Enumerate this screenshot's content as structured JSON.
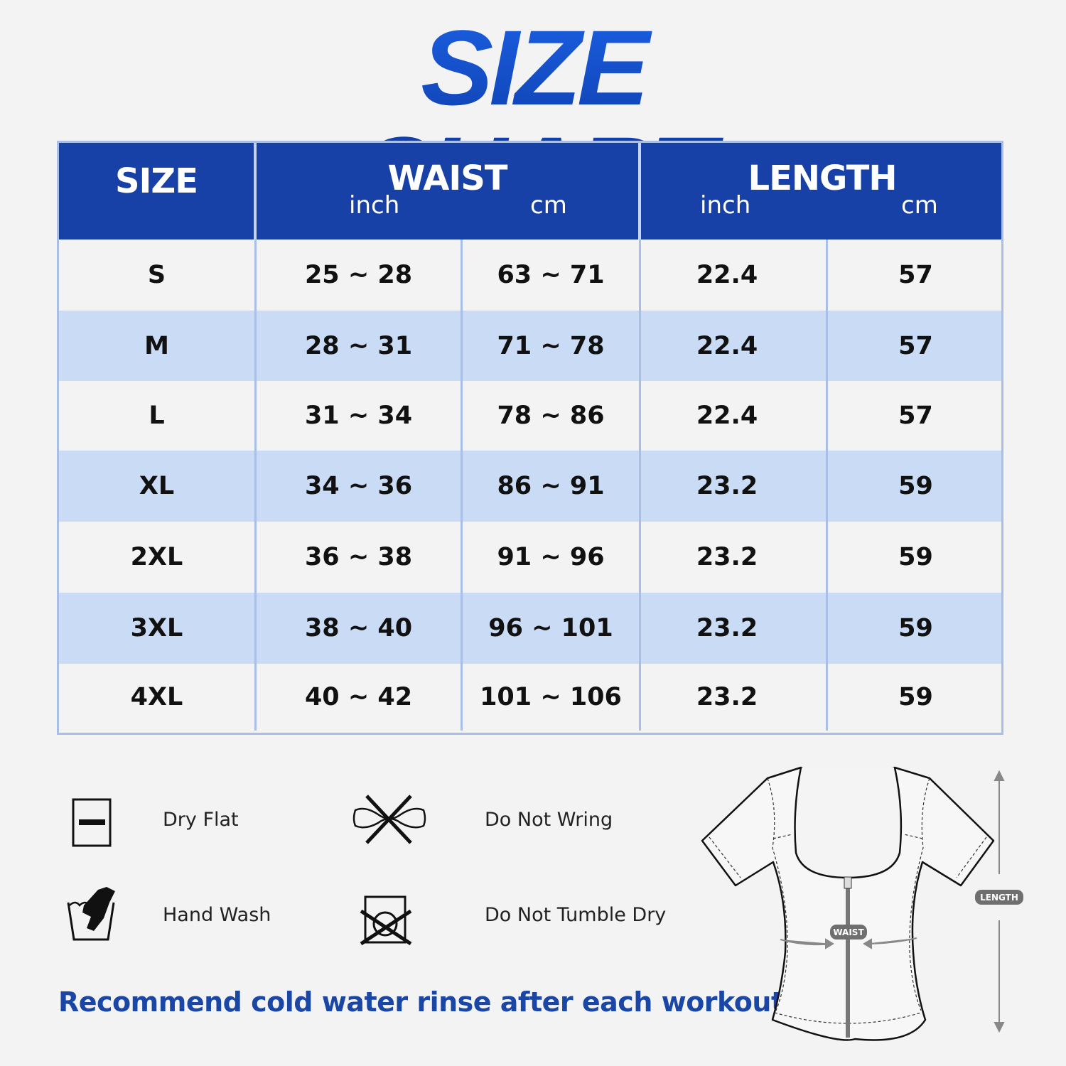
{
  "title": "SIZE CHART",
  "colors": {
    "title_blue": "#1548c0",
    "header_bg": "#1741a6",
    "row_alt": "#c9dbf5",
    "row_plain": "#f4f3f4",
    "note_blue": "#1a47a6"
  },
  "table": {
    "headers": {
      "size": "SIZE",
      "waist": {
        "label": "WAIST",
        "inch": "inch",
        "cm": "cm"
      },
      "length": {
        "label": "LENGTH",
        "inch": "inch",
        "cm": "cm"
      }
    },
    "rows": [
      {
        "size": "S",
        "waist_inch": "25 ~ 28",
        "waist_cm": "63 ~ 71",
        "length_inch": "22.4",
        "length_cm": "57"
      },
      {
        "size": "M",
        "waist_inch": "28 ~ 31",
        "waist_cm": "71 ~ 78",
        "length_inch": "22.4",
        "length_cm": "57"
      },
      {
        "size": "L",
        "waist_inch": "31 ~ 34",
        "waist_cm": "78 ~ 86",
        "length_inch": "22.4",
        "length_cm": "57"
      },
      {
        "size": "XL",
        "waist_inch": "34 ~ 36",
        "waist_cm": "86 ~ 91",
        "length_inch": "23.2",
        "length_cm": "59"
      },
      {
        "size": "2XL",
        "waist_inch": "36 ~ 38",
        "waist_cm": "91 ~ 96",
        "length_inch": "23.2",
        "length_cm": "59"
      },
      {
        "size": "3XL",
        "waist_inch": "38 ~ 40",
        "waist_cm": "96 ~ 101",
        "length_inch": "23.2",
        "length_cm": "59"
      },
      {
        "size": "4XL",
        "waist_inch": "40 ~ 42",
        "waist_cm": "101 ~ 106",
        "length_inch": "23.2",
        "length_cm": "59"
      }
    ]
  },
  "care": [
    {
      "icon": "dry-flat-icon",
      "label": "Dry Flat"
    },
    {
      "icon": "do-not-wring-icon",
      "label": "Do Not Wring"
    },
    {
      "icon": "hand-wash-icon",
      "label": "Hand Wash"
    },
    {
      "icon": "do-not-tumble-dry-icon",
      "label": "Do Not Tumble Dry"
    }
  ],
  "note": "Recommend cold water rinse after each workout.",
  "diagram": {
    "waist_label": "WAIST",
    "length_label": "LENGTH"
  }
}
